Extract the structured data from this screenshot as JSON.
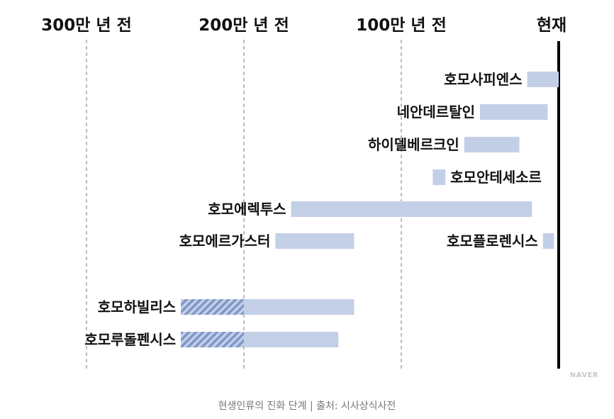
{
  "chart_data": {
    "type": "bar",
    "orientation": "horizontal",
    "x_unit": "million years ago",
    "x_ticks": [
      {
        "value": 3,
        "label": "300만 년 전"
      },
      {
        "value": 2,
        "label": "200만 년 전"
      },
      {
        "value": 1,
        "label": "100만 년 전"
      },
      {
        "value": 0,
        "label": "현재"
      }
    ],
    "series": [
      {
        "name": "호모사피엔스",
        "start": 0.2,
        "end": 0.0,
        "label_side": "left"
      },
      {
        "name": "네안데르탈인",
        "start": 0.5,
        "end": 0.07,
        "label_side": "left"
      },
      {
        "name": "하이델베르크인",
        "start": 0.6,
        "end": 0.25,
        "label_side": "left"
      },
      {
        "name": "호모안테세소르",
        "start": 0.8,
        "end": 0.72,
        "label_side": "right"
      },
      {
        "name": "호모에렉투스",
        "start": 1.7,
        "end": 0.17,
        "label_side": "left"
      },
      {
        "name": "호모에르가스터",
        "start": 1.8,
        "end": 1.3,
        "label_side": "left"
      },
      {
        "name": "호모플로렌시스",
        "start": 0.1,
        "end": 0.03,
        "label_side": "left"
      },
      {
        "name": "호모하빌리스",
        "start": 2.4,
        "end": 1.3,
        "uncertain_until": 2.0,
        "label_side": "left"
      },
      {
        "name": "호모루돌펜시스",
        "start": 2.4,
        "end": 1.4,
        "uncertain_until": 2.0,
        "label_side": "left"
      }
    ],
    "colors": {
      "bar": "#c3cfe6",
      "hatch": "#7f97c9",
      "grid": "#999999",
      "present_line": "#000000"
    }
  },
  "caption": "현생인류의 진화 단계 | 출처: 시사상식사전",
  "watermark": "NAVER"
}
